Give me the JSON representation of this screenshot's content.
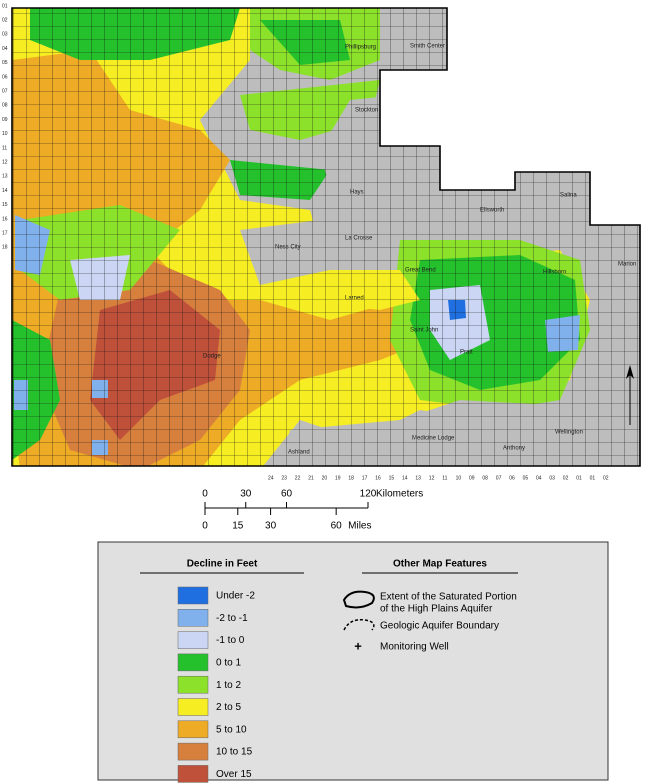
{
  "map": {
    "township_labels": [
      "01",
      "02",
      "03",
      "04",
      "05",
      "06",
      "07",
      "08",
      "09",
      "10",
      "11",
      "12",
      "13",
      "14",
      "15",
      "16",
      "17",
      "18"
    ],
    "range_labels": [
      "24",
      "23",
      "22",
      "21",
      "20",
      "19",
      "18",
      "17",
      "16",
      "15",
      "14",
      "13",
      "12",
      "11",
      "10",
      "09",
      "08",
      "07",
      "06",
      "05",
      "04",
      "03",
      "02",
      "01",
      "01",
      "02"
    ],
    "places": [
      "Smith Center",
      "Phillipsburg",
      "Stockton",
      "Hays",
      "Ellsworth",
      "Salina",
      "La Crosse",
      "Ness City",
      "Hillsboro",
      "Marion",
      "Larned",
      "Saint John",
      "Dodge",
      "Medicine Lodge",
      "Anthony",
      "Wellington",
      "Ashland",
      "Pratt",
      "Great Bend"
    ]
  },
  "scale_bar": {
    "kilometers": {
      "ticks": [
        0,
        30,
        60,
        120
      ],
      "unit": "Kilometers"
    },
    "miles": {
      "ticks": [
        0,
        15,
        30,
        60
      ],
      "unit": "Miles"
    }
  },
  "legend": {
    "decline": {
      "title": "Decline in Feet",
      "items": [
        {
          "label": "Under -2",
          "color": "#1f6fe0"
        },
        {
          "label": "-2 to -1",
          "color": "#80b1ec"
        },
        {
          "label": "-1 to 0",
          "color": "#cbd6f4"
        },
        {
          "label": "0 to 1",
          "color": "#24c12c"
        },
        {
          "label": "1 to 2",
          "color": "#8ce12a"
        },
        {
          "label": "2 to 5",
          "color": "#f6ee22"
        },
        {
          "label": "5 to 10",
          "color": "#eeab25"
        },
        {
          "label": "10 to 15",
          "color": "#d7803e"
        },
        {
          "label": "Over 15",
          "color": "#bf503a"
        }
      ]
    },
    "features": {
      "title": "Other Map Features",
      "items": [
        {
          "label": [
            "Extent of the Saturated Portion",
            "of the High Plains Aquifer"
          ]
        },
        {
          "label": [
            "Geologic Aquifer Boundary"
          ]
        },
        {
          "label": [
            "Monitoring Well"
          ]
        }
      ]
    }
  }
}
